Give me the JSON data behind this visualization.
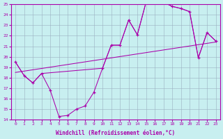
{
  "xlabel": "Windchill (Refroidissement éolien,°C)",
  "xlim": [
    -0.5,
    23.5
  ],
  "ylim": [
    14,
    25
  ],
  "xticks": [
    0,
    1,
    2,
    3,
    4,
    5,
    6,
    7,
    8,
    9,
    10,
    11,
    12,
    13,
    14,
    15,
    16,
    17,
    18,
    19,
    20,
    21,
    22,
    23
  ],
  "yticks": [
    14,
    15,
    16,
    17,
    18,
    19,
    20,
    21,
    22,
    23,
    24,
    25
  ],
  "bg_color": "#c8eff0",
  "grid_color": "#9ab0c0",
  "line_color": "#aa00aa",
  "curve_markers_x": [
    0,
    1,
    2,
    3,
    4,
    5,
    6,
    7,
    8,
    9,
    10,
    11,
    12,
    13,
    14,
    15,
    16,
    17,
    18,
    19,
    20,
    21,
    22,
    23
  ],
  "curve_markers_y": [
    19.5,
    18.2,
    17.5,
    18.4,
    16.8,
    14.3,
    14.4,
    15.0,
    15.3,
    16.6,
    18.9,
    21.1,
    21.1,
    23.5,
    22.1,
    25.2,
    25.3,
    25.2,
    24.8,
    24.6,
    24.3,
    19.9,
    22.3,
    21.5
  ],
  "straight_line_x": [
    0,
    23
  ],
  "straight_line_y": [
    18.5,
    21.4
  ],
  "arc_curve_x": [
    0,
    1,
    2,
    3,
    10,
    11,
    12,
    13,
    14,
    15,
    16,
    17,
    18,
    19,
    20,
    21,
    22,
    23
  ],
  "arc_curve_y": [
    19.5,
    18.2,
    17.5,
    18.4,
    18.9,
    21.1,
    21.1,
    23.5,
    22.1,
    25.2,
    25.3,
    25.2,
    24.8,
    24.6,
    24.3,
    19.9,
    22.3,
    21.5
  ]
}
